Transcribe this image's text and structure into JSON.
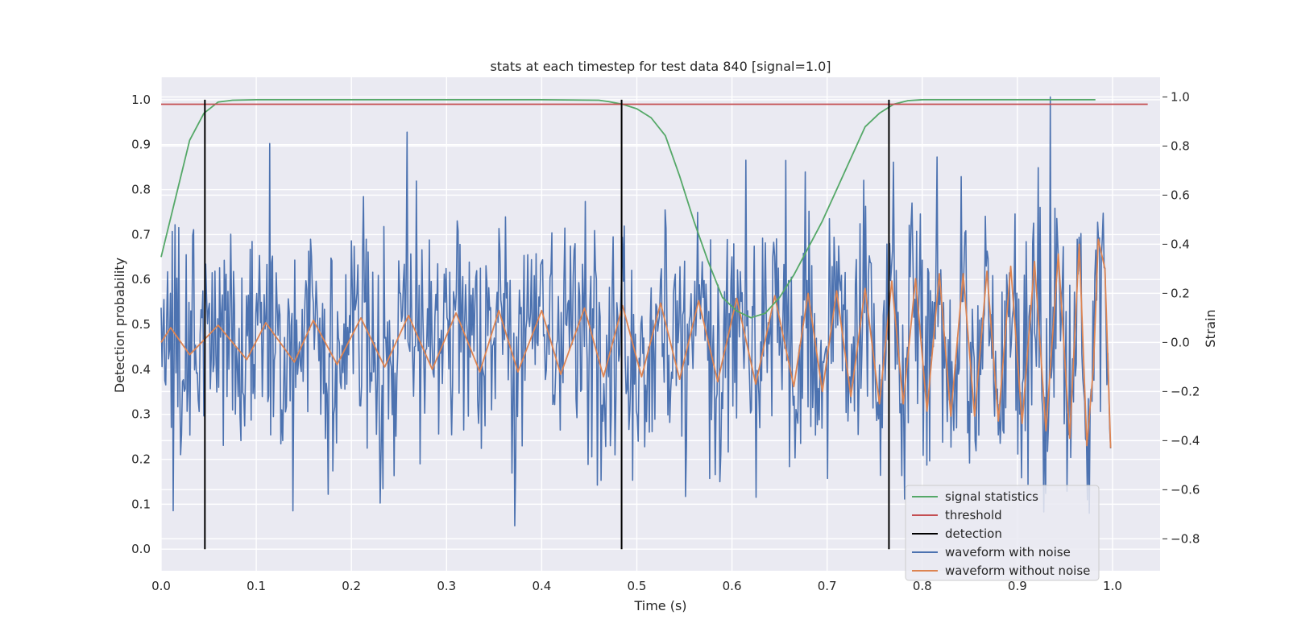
{
  "chart_data": {
    "type": "line",
    "title": "stats at each timestep for test data 840 [signal=1.0]",
    "xlabel": "Time (s)",
    "ylabel": "Detection probability",
    "y2label": "Strain",
    "xlim": [
      0.0,
      1.05
    ],
    "ylim": [
      -0.048,
      1.05
    ],
    "y2lim": [
      -0.93,
      1.08
    ],
    "xticks": [
      "0.0",
      "0.1",
      "0.2",
      "0.3",
      "0.4",
      "0.5",
      "0.6",
      "0.7",
      "0.8",
      "0.9",
      "1.0"
    ],
    "yticks": [
      "0.0",
      "0.1",
      "0.2",
      "0.3",
      "0.4",
      "0.5",
      "0.6",
      "0.7",
      "0.8",
      "0.9",
      "1.0"
    ],
    "y2ticks": [
      "−0.8",
      "−0.6",
      "−0.4",
      "−0.2",
      "0.0",
      "0.2",
      "0.4",
      "0.6",
      "0.8",
      "1.0"
    ],
    "grid": true,
    "legend_position": "lower-right",
    "series": [
      {
        "name": "signal statistics",
        "color": "#55a868",
        "axis": "left",
        "x": [
          0.0,
          0.015,
          0.03,
          0.045,
          0.06,
          0.075,
          0.1,
          0.2,
          0.3,
          0.4,
          0.46,
          0.47,
          0.485,
          0.5,
          0.515,
          0.53,
          0.545,
          0.56,
          0.575,
          0.59,
          0.605,
          0.62,
          0.635,
          0.65,
          0.665,
          0.68,
          0.695,
          0.71,
          0.725,
          0.74,
          0.755,
          0.77,
          0.785,
          0.8,
          0.82,
          0.85,
          0.9,
          0.95,
          0.982
        ],
        "y": [
          0.65,
          0.78,
          0.91,
          0.97,
          0.995,
          0.999,
          1.0,
          1.0,
          1.0,
          1.0,
          0.999,
          0.996,
          0.99,
          0.98,
          0.96,
          0.92,
          0.83,
          0.73,
          0.64,
          0.56,
          0.53,
          0.515,
          0.525,
          0.56,
          0.61,
          0.67,
          0.73,
          0.8,
          0.87,
          0.94,
          0.97,
          0.99,
          0.998,
          1.0,
          1.0,
          1.0,
          1.0,
          1.0,
          1.0
        ]
      },
      {
        "name": "threshold",
        "color": "#c44e52",
        "axis": "left",
        "x": [
          0.0,
          1.037
        ],
        "y": [
          0.99,
          0.99
        ]
      },
      {
        "name": "detection",
        "color": "#000000",
        "axis": "left",
        "x_positions": [
          0.046,
          0.484,
          0.765
        ],
        "y_range": [
          0.0,
          1.0
        ]
      },
      {
        "name": "waveform with noise",
        "color": "#4c72b0",
        "axis": "right",
        "x_range": [
          0.0,
          0.998
        ],
        "n_points": 1024,
        "y_range_observed": [
          -0.82,
          1.0
        ],
        "note_peak": [
          0.935,
          1.0
        ]
      },
      {
        "name": "waveform without noise",
        "color": "#dd8452",
        "axis": "right",
        "x": [
          0.0,
          0.01,
          0.03,
          0.06,
          0.09,
          0.11,
          0.14,
          0.16,
          0.185,
          0.21,
          0.235,
          0.26,
          0.285,
          0.31,
          0.335,
          0.355,
          0.375,
          0.4,
          0.42,
          0.445,
          0.465,
          0.485,
          0.505,
          0.525,
          0.545,
          0.565,
          0.585,
          0.605,
          0.625,
          0.645,
          0.665,
          0.68,
          0.695,
          0.71,
          0.725,
          0.74,
          0.755,
          0.768,
          0.78,
          0.793,
          0.805,
          0.818,
          0.83,
          0.843,
          0.855,
          0.868,
          0.88,
          0.893,
          0.905,
          0.918,
          0.93,
          0.943,
          0.955,
          0.965,
          0.973,
          0.98,
          0.985,
          0.992,
          0.998
        ],
        "y": [
          0.0,
          0.06,
          -0.05,
          0.07,
          -0.07,
          0.08,
          -0.08,
          0.09,
          -0.09,
          0.1,
          -0.1,
          0.11,
          -0.11,
          0.12,
          -0.12,
          0.13,
          -0.12,
          0.13,
          -0.13,
          0.14,
          -0.14,
          0.15,
          -0.14,
          0.16,
          -0.15,
          0.17,
          -0.16,
          0.18,
          -0.17,
          0.19,
          -0.18,
          0.2,
          -0.2,
          0.21,
          -0.22,
          0.22,
          -0.25,
          0.25,
          -0.25,
          0.26,
          -0.28,
          0.28,
          -0.3,
          0.28,
          -0.3,
          0.29,
          -0.32,
          0.31,
          -0.33,
          0.33,
          -0.36,
          0.36,
          -0.39,
          0.4,
          -0.42,
          -0.1,
          0.42,
          0.3,
          -0.43
        ]
      }
    ]
  }
}
